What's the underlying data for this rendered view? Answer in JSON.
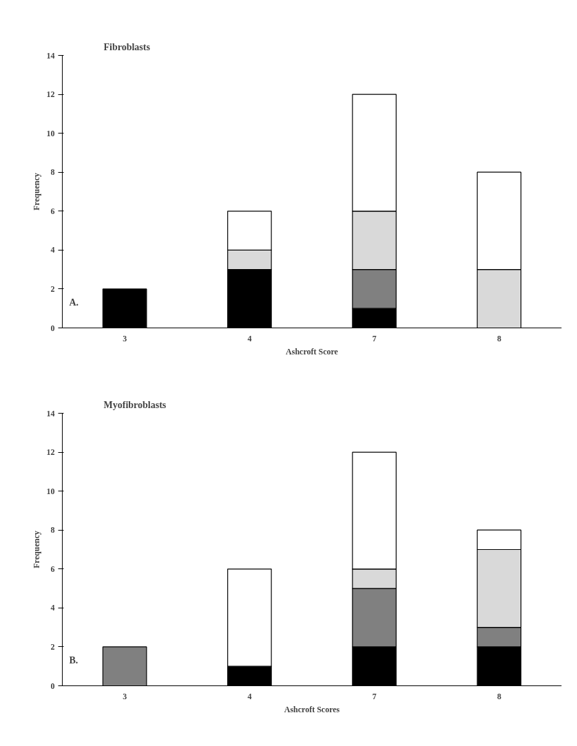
{
  "chart_data": [
    {
      "type": "bar",
      "stacked": true,
      "title": "Fibroblasts",
      "annotations": [
        "A."
      ],
      "xlabel": "Ashcroft Score",
      "ylabel": "Frequency",
      "categories": [
        "3",
        "4",
        "7",
        "8"
      ],
      "ylim": [
        0,
        14
      ],
      "yticks": [
        0,
        2,
        4,
        6,
        8,
        10,
        12,
        14
      ],
      "grid": false,
      "series": [
        {
          "color": "#000000",
          "values": [
            2,
            3,
            1,
            null
          ]
        },
        {
          "color": "#808080",
          "values": [
            null,
            null,
            2,
            null
          ]
        },
        {
          "color": "#d9d9d9",
          "values": [
            null,
            1,
            3,
            3
          ]
        },
        {
          "color": "#ffffff",
          "values": [
            null,
            2,
            6,
            5
          ]
        }
      ]
    },
    {
      "type": "bar",
      "stacked": true,
      "title": "Myofibroblasts",
      "annotations": [
        "B."
      ],
      "xlabel": "Ashcroft Scores",
      "ylabel": "Frequency",
      "categories": [
        "3",
        "4",
        "7",
        "8"
      ],
      "ylim": [
        0,
        14
      ],
      "yticks": [
        0,
        2,
        4,
        6,
        8,
        10,
        12,
        14
      ],
      "grid": false,
      "series": [
        {
          "color": "#000000",
          "values": [
            null,
            1,
            2,
            2
          ]
        },
        {
          "color": "#808080",
          "values": [
            2,
            null,
            3,
            1
          ]
        },
        {
          "color": "#d9d9d9",
          "values": [
            null,
            null,
            1,
            4
          ]
        },
        {
          "color": "#ffffff",
          "values": [
            null,
            5,
            6,
            1
          ]
        }
      ]
    }
  ]
}
